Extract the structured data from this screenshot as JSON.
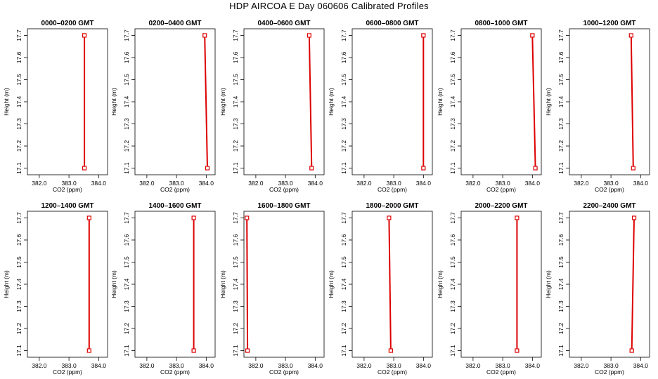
{
  "title": "HDP  AIRCOA E  Day 060606  Calibrated Profiles",
  "colors": {
    "line": "#dd0000",
    "marker": "#dd0000",
    "axis": "#000000"
  },
  "chart_data": [
    {
      "type": "line",
      "title": "0000–0200 GMT",
      "xlabel": "CO2 (ppm)",
      "ylabel": "Height (m)",
      "xlim": [
        381.6,
        384.3
      ],
      "ylim": [
        17.07,
        17.73
      ],
      "xticks": [
        "382.0",
        "383.0",
        "384.0"
      ],
      "yticks": [
        "17.1",
        "17.2",
        "17.3",
        "17.4",
        "17.5",
        "17.6",
        "17.7"
      ],
      "series": [
        {
          "x": [
            383.52,
            383.52
          ],
          "y": [
            17.1,
            17.7
          ]
        }
      ]
    },
    {
      "type": "line",
      "title": "0200–0400 GMT",
      "xlabel": "CO2 (ppm)",
      "ylabel": "Height (m)",
      "xlim": [
        381.6,
        384.3
      ],
      "ylim": [
        17.07,
        17.73
      ],
      "xticks": [
        "382.0",
        "383.0",
        "384.0"
      ],
      "yticks": [
        "17.1",
        "17.2",
        "17.3",
        "17.4",
        "17.5",
        "17.6",
        "17.7"
      ],
      "series": [
        {
          "x": [
            384.04,
            383.95
          ],
          "y": [
            17.1,
            17.7
          ]
        }
      ]
    },
    {
      "type": "line",
      "title": "0400–0600 GMT",
      "xlabel": "CO2 (ppm)",
      "ylabel": "Height (m)",
      "xlim": [
        381.6,
        384.3
      ],
      "ylim": [
        17.07,
        17.73
      ],
      "xticks": [
        "382.0",
        "383.0",
        "384.0"
      ],
      "yticks": [
        "17.1",
        "17.2",
        "17.3",
        "17.4",
        "17.5",
        "17.6",
        "17.7"
      ],
      "series": [
        {
          "x": [
            383.88,
            383.8
          ],
          "y": [
            17.1,
            17.7
          ]
        }
      ]
    },
    {
      "type": "line",
      "title": "0600–0800 GMT",
      "xlabel": "CO2 (ppm)",
      "ylabel": "Height (m)",
      "xlim": [
        381.6,
        384.3
      ],
      "ylim": [
        17.07,
        17.73
      ],
      "xticks": [
        "382.0",
        "383.0",
        "384.0"
      ],
      "yticks": [
        "17.1",
        "17.2",
        "17.3",
        "17.4",
        "17.5",
        "17.6",
        "17.7"
      ],
      "series": [
        {
          "x": [
            384.0,
            384.0
          ],
          "y": [
            17.1,
            17.7
          ]
        }
      ]
    },
    {
      "type": "line",
      "title": "0800–1000 GMT",
      "xlabel": "CO2 (ppm)",
      "ylabel": "Height (m)",
      "xlim": [
        381.6,
        384.3
      ],
      "ylim": [
        17.07,
        17.73
      ],
      "xticks": [
        "382.0",
        "383.0",
        "384.0"
      ],
      "yticks": [
        "17.1",
        "17.2",
        "17.3",
        "17.4",
        "17.5",
        "17.6",
        "17.7"
      ],
      "series": [
        {
          "x": [
            384.1,
            384.0
          ],
          "y": [
            17.1,
            17.7
          ]
        }
      ]
    },
    {
      "type": "line",
      "title": "1000–1200 GMT",
      "xlabel": "CO2 (ppm)",
      "ylabel": "Height (m)",
      "xlim": [
        381.6,
        384.3
      ],
      "ylim": [
        17.07,
        17.73
      ],
      "xticks": [
        "382.0",
        "383.0",
        "384.0"
      ],
      "yticks": [
        "17.1",
        "17.2",
        "17.3",
        "17.4",
        "17.5",
        "17.6",
        "17.7"
      ],
      "series": [
        {
          "x": [
            383.75,
            383.68
          ],
          "y": [
            17.1,
            17.7
          ]
        }
      ]
    },
    {
      "type": "line",
      "title": "1200–1400 GMT",
      "xlabel": "CO2 (ppm)",
      "ylabel": "Height (m)",
      "xlim": [
        381.6,
        384.3
      ],
      "ylim": [
        17.07,
        17.73
      ],
      "xticks": [
        "382.0",
        "383.0",
        "384.0"
      ],
      "yticks": [
        "17.1",
        "17.2",
        "17.3",
        "17.4",
        "17.5",
        "17.6",
        "17.7"
      ],
      "series": [
        {
          "x": [
            383.68,
            383.68
          ],
          "y": [
            17.1,
            17.7
          ]
        }
      ]
    },
    {
      "type": "line",
      "title": "1400–1600 GMT",
      "xlabel": "CO2 (ppm)",
      "ylabel": "Height (m)",
      "xlim": [
        381.6,
        384.3
      ],
      "ylim": [
        17.07,
        17.73
      ],
      "xticks": [
        "382.0",
        "383.0",
        "384.0"
      ],
      "yticks": [
        "17.1",
        "17.2",
        "17.3",
        "17.4",
        "17.5",
        "17.6",
        "17.7"
      ],
      "series": [
        {
          "x": [
            383.58,
            383.58
          ],
          "y": [
            17.1,
            17.7
          ]
        }
      ]
    },
    {
      "type": "line",
      "title": "1600–1800 GMT",
      "xlabel": "CO2 (ppm)",
      "ylabel": "Height (m)",
      "xlim": [
        381.6,
        384.3
      ],
      "ylim": [
        17.07,
        17.73
      ],
      "xticks": [
        "382.0",
        "383.0",
        "384.0"
      ],
      "yticks": [
        "17.1",
        "17.2",
        "17.3",
        "17.4",
        "17.5",
        "17.6",
        "17.7"
      ],
      "series": [
        {
          "x": [
            381.72,
            381.7
          ],
          "y": [
            17.1,
            17.7
          ]
        }
      ]
    },
    {
      "type": "line",
      "title": "1800–2000 GMT",
      "xlabel": "CO2 (ppm)",
      "ylabel": "Height (m)",
      "xlim": [
        381.6,
        384.3
      ],
      "ylim": [
        17.07,
        17.73
      ],
      "xticks": [
        "382.0",
        "383.0",
        "384.0"
      ],
      "yticks": [
        "17.1",
        "17.2",
        "17.3",
        "17.4",
        "17.5",
        "17.6",
        "17.7"
      ],
      "series": [
        {
          "x": [
            382.9,
            382.84
          ],
          "y": [
            17.1,
            17.7
          ]
        }
      ]
    },
    {
      "type": "line",
      "title": "2000–2200 GMT",
      "xlabel": "CO2 (ppm)",
      "ylabel": "Height (m)",
      "xlim": [
        381.6,
        384.3
      ],
      "ylim": [
        17.07,
        17.73
      ],
      "xticks": [
        "382.0",
        "383.0",
        "384.0"
      ],
      "yticks": [
        "17.1",
        "17.2",
        "17.3",
        "17.4",
        "17.5",
        "17.6",
        "17.7"
      ],
      "series": [
        {
          "x": [
            383.48,
            383.48
          ],
          "y": [
            17.1,
            17.7
          ]
        }
      ]
    },
    {
      "type": "line",
      "title": "2200–2400 GMT",
      "xlabel": "CO2 (ppm)",
      "ylabel": "Height (m)",
      "xlim": [
        381.6,
        384.3
      ],
      "ylim": [
        17.07,
        17.73
      ],
      "xticks": [
        "382.0",
        "383.0",
        "384.0"
      ],
      "yticks": [
        "17.1",
        "17.2",
        "17.3",
        "17.4",
        "17.5",
        "17.6",
        "17.7"
      ],
      "series": [
        {
          "x": [
            383.7,
            383.78
          ],
          "y": [
            17.1,
            17.7
          ]
        }
      ]
    }
  ]
}
